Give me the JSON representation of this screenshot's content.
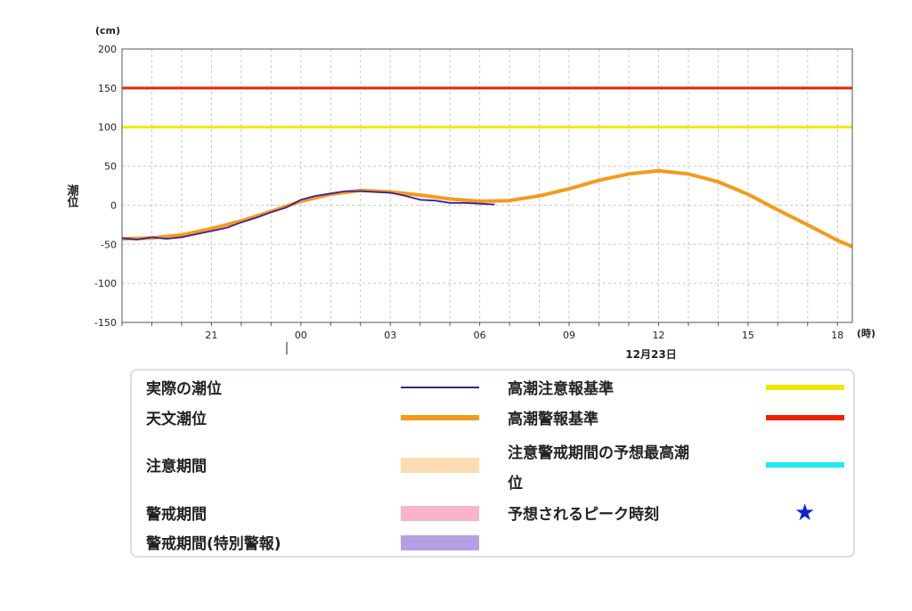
{
  "chart_data": {
    "type": "line",
    "y_unit": "(cm)",
    "x_unit": "(時)",
    "ylabel": "潮位",
    "ylim": [
      -150,
      200
    ],
    "y_ticks": [
      200,
      150,
      100,
      50,
      0,
      -50,
      -100,
      -150
    ],
    "xlim": [
      18.0,
      42.5
    ],
    "x_ticks": [
      {
        "value": 21,
        "label": "21"
      },
      {
        "value": 24,
        "label": "00"
      },
      {
        "value": 27,
        "label": "03"
      },
      {
        "value": 30,
        "label": "06"
      },
      {
        "value": 33,
        "label": "09"
      },
      {
        "value": 36,
        "label": "12"
      },
      {
        "value": 39,
        "label": "15"
      },
      {
        "value": 42,
        "label": "18"
      }
    ],
    "date_label": "12月23日",
    "grid": true,
    "thresholds": [
      {
        "name": "高潮警報基準",
        "value": 150,
        "color": "#ee2200"
      },
      {
        "name": "高潮注意報基準",
        "value": 100,
        "color": "#f2e600"
      }
    ],
    "series": [
      {
        "name": "天文潮位",
        "color": "#f39a1d",
        "x": [
          18.0,
          19.0,
          20.0,
          21.0,
          22.0,
          23.0,
          24.0,
          25.0,
          26.0,
          27.0,
          28.0,
          29.0,
          30.0,
          31.0,
          32.0,
          33.0,
          34.0,
          35.0,
          36.0,
          37.0,
          38.0,
          39.0,
          40.0,
          41.0,
          42.0,
          42.5
        ],
        "values": [
          -43,
          -42,
          -38,
          -30,
          -20,
          -8,
          5,
          14,
          19,
          17,
          13,
          8,
          5,
          6,
          12,
          21,
          32,
          40,
          44,
          40,
          30,
          14,
          -6,
          -25,
          -45,
          -53
        ]
      },
      {
        "name": "実際の潮位",
        "color": "#3a1ea0",
        "x": [
          18.0,
          18.5,
          19.0,
          19.5,
          20.0,
          20.5,
          21.0,
          21.5,
          22.0,
          22.5,
          23.0,
          23.5,
          24.0,
          24.5,
          25.0,
          25.5,
          26.0,
          26.5,
          27.0,
          27.5,
          28.0,
          28.5,
          29.0,
          29.5,
          30.0,
          30.5
        ],
        "values": [
          -42,
          -44,
          -41,
          -43,
          -41,
          -37,
          -33,
          -29,
          -22,
          -16,
          -9,
          -3,
          7,
          12,
          15,
          18,
          18,
          17,
          16,
          12,
          7,
          6,
          3,
          3,
          2,
          1
        ]
      }
    ]
  },
  "legend": {
    "items": [
      {
        "label": "実際の潮位",
        "kind": "line",
        "color": "#3a1ea0"
      },
      {
        "label": "天文潮位",
        "kind": "thick",
        "color": "#f39a1d"
      },
      {
        "label": "注意期間",
        "kind": "band",
        "color": "#fcdcb0"
      },
      {
        "label": "警戒期間",
        "kind": "band",
        "color": "#f9b4cb"
      },
      {
        "label": "警戒期間(特別警報)",
        "kind": "band",
        "color": "#b79ee2"
      },
      {
        "label": "高潮注意報基準",
        "kind": "thick",
        "color": "#f2e600"
      },
      {
        "label": "高潮警報基準",
        "kind": "thick",
        "color": "#ee2200"
      },
      {
        "label": "注意警戒期間の予想最高潮\n位",
        "kind": "thick",
        "color": "#22e8f0"
      },
      {
        "label": "予想されるピーク時刻",
        "kind": "star",
        "color": "#1022cc"
      }
    ]
  }
}
